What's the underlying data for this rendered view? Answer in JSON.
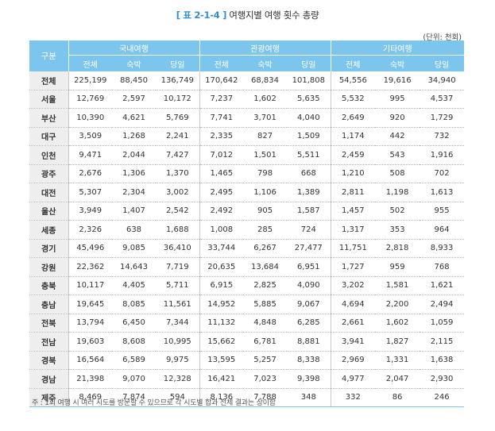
{
  "title": {
    "tag": "[ 표 2-1-4 ]",
    "text": "여행지별 여행 횟수 총량"
  },
  "unit": "(단위: 천회)",
  "table": {
    "corner": "구분",
    "groups": [
      "국내여행",
      "관광여행",
      "기타여행"
    ],
    "subcolumns": [
      "전체",
      "숙박",
      "당일",
      "전체",
      "숙박",
      "당일",
      "전체",
      "숙박",
      "당일"
    ],
    "rows": [
      {
        "label": "전체",
        "values": [
          "225,199",
          "88,450",
          "136,749",
          "170,642",
          "68,834",
          "101,808",
          "54,556",
          "19,616",
          "34,940"
        ]
      },
      {
        "label": "서울",
        "values": [
          "12,769",
          "2,597",
          "10,172",
          "7,237",
          "1,602",
          "5,635",
          "5,532",
          "995",
          "4,537"
        ]
      },
      {
        "label": "부산",
        "values": [
          "10,390",
          "4,621",
          "5,769",
          "7,741",
          "3,701",
          "4,040",
          "2,649",
          "920",
          "1,729"
        ]
      },
      {
        "label": "대구",
        "values": [
          "3,509",
          "1,268",
          "2,241",
          "2,335",
          "827",
          "1,509",
          "1,174",
          "442",
          "732"
        ]
      },
      {
        "label": "인천",
        "values": [
          "9,471",
          "2,044",
          "7,427",
          "7,012",
          "1,501",
          "5,511",
          "2,459",
          "543",
          "1,916"
        ]
      },
      {
        "label": "광주",
        "values": [
          "2,676",
          "1,306",
          "1,370",
          "1,465",
          "798",
          "668",
          "1,210",
          "508",
          "702"
        ]
      },
      {
        "label": "대전",
        "values": [
          "5,307",
          "2,304",
          "3,002",
          "2,495",
          "1,106",
          "1,389",
          "2,811",
          "1,198",
          "1,613"
        ]
      },
      {
        "label": "울산",
        "values": [
          "3,949",
          "1,407",
          "2,542",
          "2,492",
          "905",
          "1,587",
          "1,457",
          "502",
          "955"
        ]
      },
      {
        "label": "세종",
        "values": [
          "2,326",
          "638",
          "1,688",
          "1,008",
          "285",
          "724",
          "1,317",
          "353",
          "964"
        ]
      },
      {
        "label": "경기",
        "values": [
          "45,496",
          "9,085",
          "36,410",
          "33,744",
          "6,267",
          "27,477",
          "11,751",
          "2,818",
          "8,933"
        ]
      },
      {
        "label": "강원",
        "values": [
          "22,362",
          "14,643",
          "7,719",
          "20,635",
          "13,684",
          "6,951",
          "1,727",
          "959",
          "768"
        ]
      },
      {
        "label": "충북",
        "values": [
          "10,117",
          "4,405",
          "5,711",
          "6,915",
          "2,825",
          "4,090",
          "3,202",
          "1,581",
          "1,621"
        ]
      },
      {
        "label": "충남",
        "values": [
          "19,645",
          "8,085",
          "11,561",
          "14,952",
          "5,885",
          "9,067",
          "4,694",
          "2,200",
          "2,494"
        ]
      },
      {
        "label": "전북",
        "values": [
          "13,794",
          "6,450",
          "7,344",
          "11,132",
          "4,848",
          "6,285",
          "2,661",
          "1,602",
          "1,059"
        ]
      },
      {
        "label": "전남",
        "values": [
          "19,603",
          "8,608",
          "10,995",
          "15,662",
          "6,781",
          "8,881",
          "3,941",
          "1,827",
          "2,115"
        ]
      },
      {
        "label": "경북",
        "values": [
          "16,564",
          "6,589",
          "9,975",
          "13,595",
          "5,257",
          "8,338",
          "2,969",
          "1,331",
          "1,638"
        ]
      },
      {
        "label": "경남",
        "values": [
          "21,398",
          "9,070",
          "12,328",
          "16,421",
          "7,023",
          "9,398",
          "4,977",
          "2,047",
          "2,930"
        ]
      },
      {
        "label": "제주",
        "values": [
          "8,469",
          "7,874",
          "594",
          "8,136",
          "7,788",
          "348",
          "332",
          "86",
          "246"
        ]
      }
    ]
  },
  "note": "주 : 1회 여행 시 여러 시도를 방문할 수 있으므로 각 시도별 합과 전체 결과는 상이함"
}
